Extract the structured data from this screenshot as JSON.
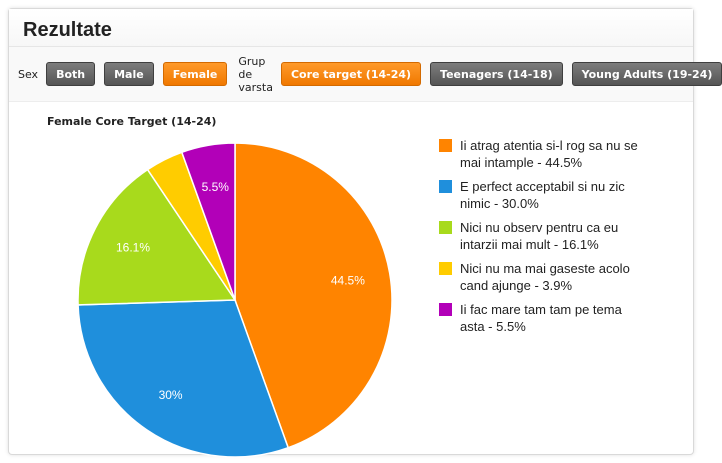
{
  "panel": {
    "title": "Rezultate"
  },
  "filters": {
    "sex_label": "Sex",
    "sex_buttons": [
      {
        "label": "Both",
        "active": false
      },
      {
        "label": "Male",
        "active": false
      },
      {
        "label": "Female",
        "active": true
      }
    ],
    "age_label": "Grup de varsta",
    "age_buttons": [
      {
        "label": "Core target (14-24)",
        "active": true
      },
      {
        "label": "Teenagers (14-18)",
        "active": false
      },
      {
        "label": "Young Adults (19-24)",
        "active": false
      }
    ]
  },
  "colors": {
    "accent_orange": "#f58300",
    "button_gray": "#666666"
  },
  "chart_data": {
    "type": "pie",
    "title": "Female Core Target (14-24)",
    "legend_position": "right",
    "slices": [
      {
        "label": "Ii atrag atentia si-l rog sa nu se mai intample - 44.5%",
        "value": 44.5,
        "data_label": "44.5%",
        "color": "#ff8400"
      },
      {
        "label": "E perfect acceptabil si nu zic nimic - 30.0%",
        "value": 30.0,
        "data_label": "30%",
        "color": "#1f8fdc"
      },
      {
        "label": "Nici nu observ pentru ca eu intarzii mai mult - 16.1%",
        "value": 16.1,
        "data_label": "16.1%",
        "color": "#a8da1c"
      },
      {
        "label": "Nici nu ma mai gaseste acolo cand ajunge - 3.9%",
        "value": 3.9,
        "data_label": "",
        "color": "#ffcc00"
      },
      {
        "label": "Ii fac mare tam tam pe tema asta - 5.5%",
        "value": 5.5,
        "data_label": "5.5%",
        "color": "#b200b8"
      }
    ]
  }
}
